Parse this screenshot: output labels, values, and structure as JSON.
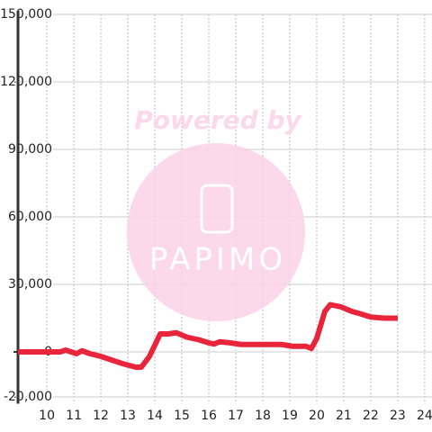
{
  "chart_data": {
    "type": "line",
    "x": [
      8.93,
      10.5,
      10.7,
      11.1,
      11.3,
      11.6,
      12.0,
      12.4,
      12.8,
      13.3,
      13.5,
      13.8,
      14.2,
      14.5,
      14.8,
      15.2,
      15.6,
      16.0,
      16.2,
      16.4,
      16.8,
      17.2,
      18.0,
      18.7,
      19.1,
      19.6,
      19.8,
      20.0,
      20.3,
      20.5,
      20.9,
      21.3,
      21.6,
      22.0,
      22.5,
      23.0
    ],
    "series": [
      {
        "color": "#e8253a",
        "values": [
          0,
          0,
          800,
          -800,
          500,
          -800,
          -2000,
          -3600,
          -5200,
          -6800,
          -6800,
          -2000,
          8000,
          8000,
          8500,
          6500,
          5500,
          4000,
          3500,
          4500,
          4000,
          3300,
          3300,
          3300,
          2500,
          2500,
          1500,
          6000,
          18000,
          21000,
          20000,
          18000,
          17000,
          15500,
          15000,
          15000
        ]
      }
    ],
    "xlim": [
      8.93,
      24.27
    ],
    "xticks": [
      10,
      11,
      12,
      13,
      14,
      15,
      16,
      17,
      18,
      19,
      20,
      21,
      22,
      23,
      24
    ],
    "ylim": [
      -23000,
      150000
    ],
    "yticks": [
      {
        "value": -20000,
        "label": "-20,000"
      },
      {
        "value": 0,
        "label": "0"
      },
      {
        "value": 30000,
        "label": "30,000"
      },
      {
        "value": 60000,
        "label": "60,000"
      },
      {
        "value": 90000,
        "label": "90,000"
      },
      {
        "value": 120000,
        "label": "120,000"
      },
      {
        "value": 150000,
        "label": "150,000"
      }
    ],
    "grid": true,
    "watermark": {
      "text": "Powered by",
      "logo": "PAPIMO"
    }
  }
}
